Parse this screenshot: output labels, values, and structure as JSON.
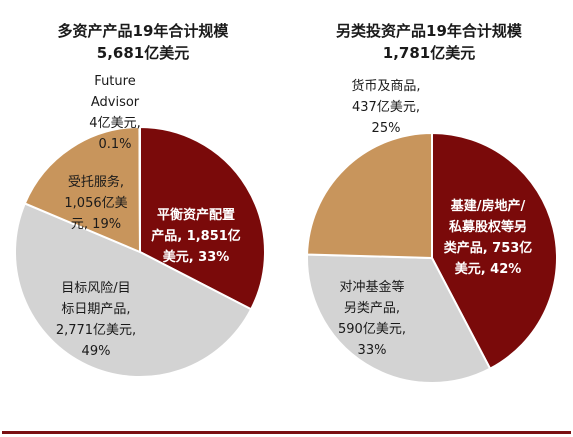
{
  "colors": {
    "dark_red": "#7a0a0a",
    "tan": "#c8955c",
    "grey": "#d3d3d3",
    "rule": "#7a0f12",
    "text_dark": "#1a1a1a",
    "text_light": "#ffffff"
  },
  "chart_data": [
    {
      "type": "pie",
      "title": "多资产产品19年合计规模",
      "subtitle": "5,681亿美元",
      "unit": "亿美元",
      "slices": [
        {
          "name": "平衡资产配置产品",
          "value": 1851,
          "percent": 33,
          "color": "#7a0a0a",
          "label_lines": [
            "平衡资产配置",
            "产品, 1,851亿",
            "美元, 33%"
          ],
          "label_color": "#ffffff"
        },
        {
          "name": "目标风险/目标日期产品",
          "value": 2771,
          "percent": 49,
          "color": "#d3d3d3",
          "label_lines": [
            "目标风险/目",
            "标日期产品,",
            "2,771亿美元,",
            "49%"
          ],
          "label_color": "#1a1a1a"
        },
        {
          "name": "受托服务",
          "value": 1056,
          "percent": 19,
          "color": "#c8955c",
          "label_lines": [
            "受托服务,",
            "1,056亿美",
            "元, 19%"
          ],
          "label_color": "#1a1a1a"
        },
        {
          "name": "Future Advisor",
          "value": 4,
          "percent": 0.1,
          "color": "#c8955c",
          "label_lines": [
            "Future",
            "Advisor",
            "4亿美元,",
            "0.1%"
          ],
          "label_color": "#1a1a1a"
        }
      ]
    },
    {
      "type": "pie",
      "title": "另类投资产品19年合计规模",
      "subtitle": "1,781亿美元",
      "unit": "亿美元",
      "slices": [
        {
          "name": "基建/房地产/私募股权等另类产品",
          "value": 753,
          "percent": 42,
          "color": "#7a0a0a",
          "label_lines": [
            "基建/房地产/",
            "私募股权等另",
            "类产品, 753亿",
            "美元, 42%"
          ],
          "label_color": "#ffffff"
        },
        {
          "name": "对冲基金等另类产品",
          "value": 590,
          "percent": 33,
          "color": "#d3d3d3",
          "label_lines": [
            "对冲基金等",
            "另类产品,",
            "590亿美元,",
            "33%"
          ],
          "label_color": "#1a1a1a"
        },
        {
          "name": "货币及商品",
          "value": 437,
          "percent": 25,
          "color": "#c8955c",
          "label_lines": [
            "货币及商品,",
            "437亿美元,",
            "25%"
          ],
          "label_color": "#1a1a1a"
        }
      ]
    }
  ]
}
